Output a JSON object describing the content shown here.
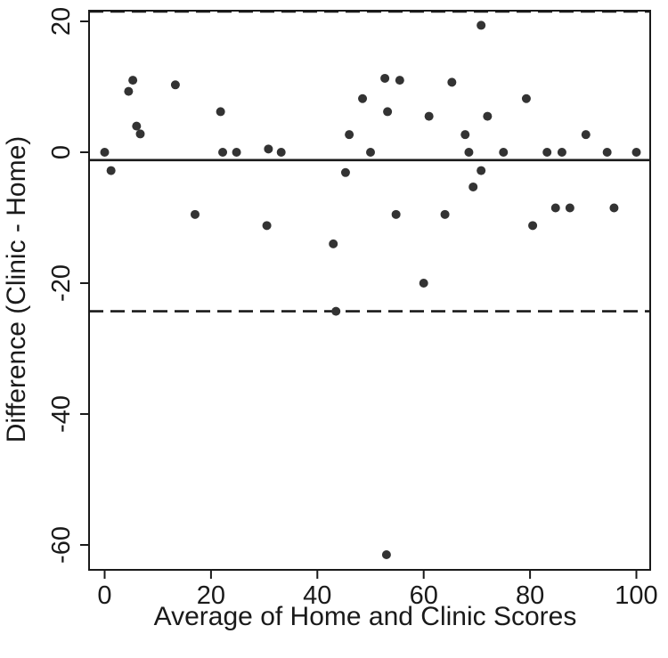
{
  "chart_data": {
    "type": "scatter",
    "title": "",
    "xlabel": "Average of Home and Clinic Scores",
    "ylabel": "Difference (Clinic - Home)",
    "xlim": [
      -2,
      102
    ],
    "ylim": [
      -64,
      22.5
    ],
    "x_ticks": [
      0,
      20,
      40,
      60,
      80,
      100
    ],
    "x_tick_labels": [
      "0",
      "20",
      "40",
      "60",
      "80",
      "100"
    ],
    "y_ticks": [
      20,
      0,
      -20,
      -40,
      -60
    ],
    "y_tick_labels": [
      "20",
      "0",
      "-20",
      "-40",
      "-60"
    ],
    "grid": false,
    "reference_lines": [
      {
        "name": "mean",
        "y": -1.2,
        "style": "solid"
      },
      {
        "name": "upper-limit",
        "y": 21.5,
        "style": "dashed"
      },
      {
        "name": "lower-limit",
        "y": -24.3,
        "style": "dashed"
      }
    ],
    "points": [
      {
        "x": 0,
        "y": 0
      },
      {
        "x": 1.2,
        "y": -2.8
      },
      {
        "x": 4.5,
        "y": 9.3
      },
      {
        "x": 5.3,
        "y": 11
      },
      {
        "x": 6,
        "y": 4
      },
      {
        "x": 6.7,
        "y": 2.8
      },
      {
        "x": 13.3,
        "y": 10.3
      },
      {
        "x": 17,
        "y": -9.5
      },
      {
        "x": 21.8,
        "y": 6.2
      },
      {
        "x": 22.2,
        "y": 0
      },
      {
        "x": 24.8,
        "y": 0
      },
      {
        "x": 30.5,
        "y": -11.2
      },
      {
        "x": 30.8,
        "y": 0.5
      },
      {
        "x": 33.2,
        "y": 0
      },
      {
        "x": 43,
        "y": -14
      },
      {
        "x": 43.5,
        "y": -24.3
      },
      {
        "x": 45.3,
        "y": -3.1
      },
      {
        "x": 46,
        "y": 2.7
      },
      {
        "x": 48.5,
        "y": 8.2
      },
      {
        "x": 50,
        "y": 0
      },
      {
        "x": 52.7,
        "y": 11.3
      },
      {
        "x": 53.2,
        "y": 6.2
      },
      {
        "x": 53,
        "y": -61.5
      },
      {
        "x": 54.8,
        "y": -9.5
      },
      {
        "x": 55.5,
        "y": 11
      },
      {
        "x": 60,
        "y": -20
      },
      {
        "x": 61,
        "y": 5.5
      },
      {
        "x": 64,
        "y": -9.5
      },
      {
        "x": 65.3,
        "y": 10.7
      },
      {
        "x": 67.8,
        "y": 2.7
      },
      {
        "x": 68.5,
        "y": 0
      },
      {
        "x": 69.3,
        "y": -5.3
      },
      {
        "x": 70.8,
        "y": 19.4
      },
      {
        "x": 70.8,
        "y": -2.8
      },
      {
        "x": 72,
        "y": 5.5
      },
      {
        "x": 75,
        "y": 0
      },
      {
        "x": 79.3,
        "y": 8.2
      },
      {
        "x": 80.5,
        "y": -11.2
      },
      {
        "x": 83.2,
        "y": 0
      },
      {
        "x": 84.8,
        "y": -8.5
      },
      {
        "x": 86,
        "y": 0
      },
      {
        "x": 87.5,
        "y": -8.5
      },
      {
        "x": 90.5,
        "y": 2.7
      },
      {
        "x": 94.5,
        "y": 0
      },
      {
        "x": 95.8,
        "y": -8.5
      },
      {
        "x": 100,
        "y": 0
      }
    ]
  }
}
